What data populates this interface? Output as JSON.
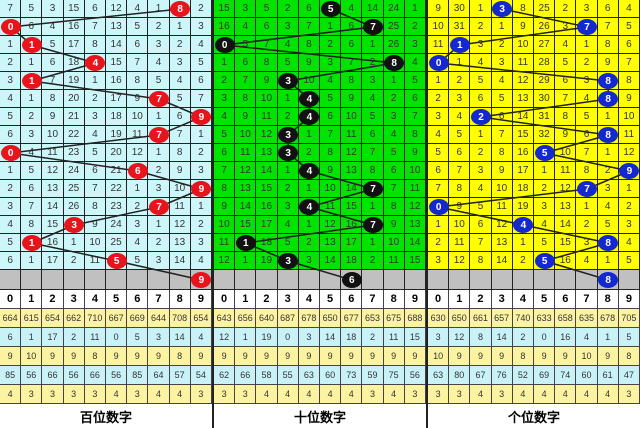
{
  "colors": {
    "panels": [
      {
        "bg": "#ccf6fa",
        "ball": "#e8141c"
      },
      {
        "bg": "#00e400",
        "ball": "#111111"
      },
      {
        "bg": "#ffff00",
        "ball": "#1428d0"
      }
    ],
    "gray_row": "#c0c0c0",
    "stat_yellow": "#fbf3a0",
    "stat_cyan": "#c8f2f8"
  },
  "header_digits": [
    "0",
    "1",
    "2",
    "3",
    "4",
    "5",
    "6",
    "7",
    "8",
    "9"
  ],
  "panels": [
    {
      "label": "百位数字",
      "rows": [
        [
          "7",
          "5",
          "3",
          "15",
          "6",
          "12",
          "4",
          "1",
          "8",
          "2"
        ],
        [
          "0",
          "6",
          "4",
          "16",
          "7",
          "13",
          "5",
          "2",
          "1",
          "3"
        ],
        [
          "1",
          "1",
          "5",
          "17",
          "8",
          "14",
          "6",
          "3",
          "2",
          "4"
        ],
        [
          "2",
          "1",
          "6",
          "18",
          "4",
          "15",
          "7",
          "4",
          "3",
          "5"
        ],
        [
          "3",
          "1",
          "7",
          "19",
          "1",
          "16",
          "8",
          "5",
          "4",
          "6"
        ],
        [
          "4",
          "1",
          "8",
          "20",
          "2",
          "17",
          "9",
          "7",
          "5",
          "7"
        ],
        [
          "5",
          "2",
          "9",
          "21",
          "3",
          "18",
          "10",
          "1",
          "6",
          "9"
        ],
        [
          "6",
          "3",
          "10",
          "22",
          "4",
          "19",
          "11",
          "7",
          "7",
          "1"
        ],
        [
          "0",
          "4",
          "11",
          "23",
          "5",
          "20",
          "12",
          "1",
          "8",
          "2"
        ],
        [
          "1",
          "5",
          "12",
          "24",
          "6",
          "21",
          "6",
          "2",
          "9",
          "3"
        ],
        [
          "2",
          "6",
          "13",
          "25",
          "7",
          "22",
          "1",
          "3",
          "10",
          "9"
        ],
        [
          "3",
          "7",
          "14",
          "26",
          "8",
          "23",
          "2",
          "7",
          "11",
          "1"
        ],
        [
          "4",
          "8",
          "15",
          "3",
          "9",
          "24",
          "3",
          "1",
          "12",
          "2"
        ],
        [
          "5",
          "1",
          "16",
          "1",
          "10",
          "25",
          "4",
          "2",
          "13",
          "3"
        ],
        [
          "6",
          "1",
          "17",
          "2",
          "11",
          "5",
          "5",
          "3",
          "14",
          "4"
        ]
      ],
      "hits": [
        8,
        0,
        1,
        4,
        1,
        7,
        9,
        7,
        0,
        6,
        9,
        7,
        3,
        1,
        5,
        9
      ],
      "stats": [
        [
          "664",
          "615",
          "654",
          "662",
          "710",
          "667",
          "669",
          "644",
          "708",
          "654"
        ],
        [
          "6",
          "1",
          "17",
          "2",
          "11",
          "0",
          "5",
          "3",
          "14",
          "4"
        ],
        [
          "9",
          "10",
          "9",
          "9",
          "8",
          "9",
          "9",
          "9",
          "8",
          "9"
        ],
        [
          "85",
          "56",
          "66",
          "56",
          "66",
          "56",
          "85",
          "64",
          "57",
          "54"
        ],
        [
          "4",
          "3",
          "3",
          "3",
          "3",
          "4",
          "3",
          "4",
          "4",
          "3"
        ]
      ]
    },
    {
      "label": "十位数字",
      "rows": [
        [
          "15",
          "3",
          "5",
          "2",
          "6",
          "5",
          "4",
          "14",
          "24",
          "1"
        ],
        [
          "16",
          "4",
          "6",
          "3",
          "7",
          "1",
          "6",
          "7",
          "25",
          "2"
        ],
        [
          "0",
          "5",
          "7",
          "4",
          "8",
          "2",
          "6",
          "1",
          "26",
          "3"
        ],
        [
          "1",
          "6",
          "8",
          "5",
          "9",
          "3",
          "7",
          "2",
          "8",
          "4"
        ],
        [
          "2",
          "7",
          "9",
          "3",
          "10",
          "4",
          "8",
          "3",
          "1",
          "5"
        ],
        [
          "3",
          "8",
          "10",
          "1",
          "4",
          "5",
          "9",
          "4",
          "2",
          "6"
        ],
        [
          "4",
          "9",
          "11",
          "2",
          "4",
          "6",
          "10",
          "5",
          "3",
          "7"
        ],
        [
          "5",
          "10",
          "12",
          "3",
          "1",
          "7",
          "11",
          "6",
          "4",
          "8"
        ],
        [
          "6",
          "11",
          "13",
          "3",
          "2",
          "8",
          "12",
          "7",
          "5",
          "9"
        ],
        [
          "7",
          "12",
          "14",
          "1",
          "4",
          "9",
          "13",
          "8",
          "6",
          "10"
        ],
        [
          "8",
          "13",
          "15",
          "2",
          "1",
          "10",
          "14",
          "7",
          "7",
          "11"
        ],
        [
          "9",
          "14",
          "16",
          "3",
          "4",
          "11",
          "15",
          "1",
          "8",
          "12"
        ],
        [
          "10",
          "15",
          "17",
          "4",
          "1",
          "12",
          "16",
          "7",
          "9",
          "13"
        ],
        [
          "11",
          "1",
          "18",
          "5",
          "2",
          "13",
          "17",
          "1",
          "10",
          "14"
        ],
        [
          "12",
          "1",
          "19",
          "3",
          "3",
          "14",
          "18",
          "2",
          "11",
          "15"
        ]
      ],
      "hits": [
        5,
        7,
        0,
        8,
        3,
        4,
        4,
        3,
        3,
        4,
        7,
        4,
        7,
        1,
        3,
        6
      ],
      "stats": [
        [
          "643",
          "656",
          "640",
          "687",
          "678",
          "650",
          "677",
          "653",
          "675",
          "688"
        ],
        [
          "12",
          "1",
          "19",
          "0",
          "3",
          "14",
          "18",
          "2",
          "11",
          "15"
        ],
        [
          "9",
          "9",
          "9",
          "9",
          "9",
          "9",
          "9",
          "9",
          "9",
          "9"
        ],
        [
          "62",
          "66",
          "58",
          "55",
          "63",
          "60",
          "73",
          "59",
          "75",
          "56"
        ],
        [
          "3",
          "3",
          "4",
          "4",
          "4",
          "4",
          "4",
          "3",
          "4",
          "3"
        ]
      ]
    },
    {
      "label": "个位数字",
      "rows": [
        [
          "9",
          "30",
          "1",
          "3",
          "8",
          "25",
          "2",
          "3",
          "6",
          "4"
        ],
        [
          "10",
          "31",
          "2",
          "1",
          "9",
          "26",
          "3",
          "7",
          "7",
          "5"
        ],
        [
          "11",
          "1",
          "3",
          "2",
          "10",
          "27",
          "4",
          "1",
          "8",
          "6"
        ],
        [
          "0",
          "1",
          "4",
          "3",
          "11",
          "28",
          "5",
          "2",
          "9",
          "7"
        ],
        [
          "1",
          "2",
          "5",
          "4",
          "12",
          "29",
          "6",
          "3",
          "8",
          "8"
        ],
        [
          "2",
          "3",
          "6",
          "5",
          "13",
          "30",
          "7",
          "4",
          "8",
          "9"
        ],
        [
          "3",
          "4",
          "2",
          "6",
          "14",
          "31",
          "8",
          "5",
          "1",
          "10"
        ],
        [
          "4",
          "5",
          "1",
          "7",
          "15",
          "32",
          "9",
          "6",
          "8",
          "11"
        ],
        [
          "5",
          "6",
          "2",
          "8",
          "16",
          "5",
          "10",
          "7",
          "1",
          "12"
        ],
        [
          "6",
          "7",
          "3",
          "9",
          "17",
          "1",
          "11",
          "8",
          "2",
          "9"
        ],
        [
          "7",
          "8",
          "4",
          "10",
          "18",
          "2",
          "12",
          "7",
          "3",
          "1"
        ],
        [
          "0",
          "9",
          "5",
          "11",
          "19",
          "3",
          "13",
          "1",
          "4",
          "2"
        ],
        [
          "1",
          "10",
          "6",
          "12",
          "4",
          "4",
          "14",
          "2",
          "5",
          "3"
        ],
        [
          "2",
          "11",
          "7",
          "13",
          "1",
          "5",
          "15",
          "3",
          "8",
          "4"
        ],
        [
          "3",
          "12",
          "8",
          "14",
          "2",
          "5",
          "16",
          "4",
          "1",
          "5"
        ]
      ],
      "hits": [
        3,
        7,
        1,
        0,
        8,
        8,
        2,
        8,
        5,
        9,
        7,
        0,
        4,
        8,
        5,
        8
      ],
      "stats": [
        [
          "630",
          "650",
          "661",
          "657",
          "740",
          "633",
          "658",
          "635",
          "678",
          "705"
        ],
        [
          "3",
          "12",
          "8",
          "14",
          "2",
          "0",
          "16",
          "4",
          "1",
          "5"
        ],
        [
          "10",
          "9",
          "9",
          "9",
          "8",
          "9",
          "9",
          "10",
          "9",
          "8"
        ],
        [
          "63",
          "80",
          "67",
          "76",
          "52",
          "69",
          "74",
          "60",
          "61",
          "47"
        ],
        [
          "3",
          "3",
          "4",
          "3",
          "4",
          "4",
          "4",
          "4",
          "4",
          "3"
        ]
      ]
    }
  ]
}
